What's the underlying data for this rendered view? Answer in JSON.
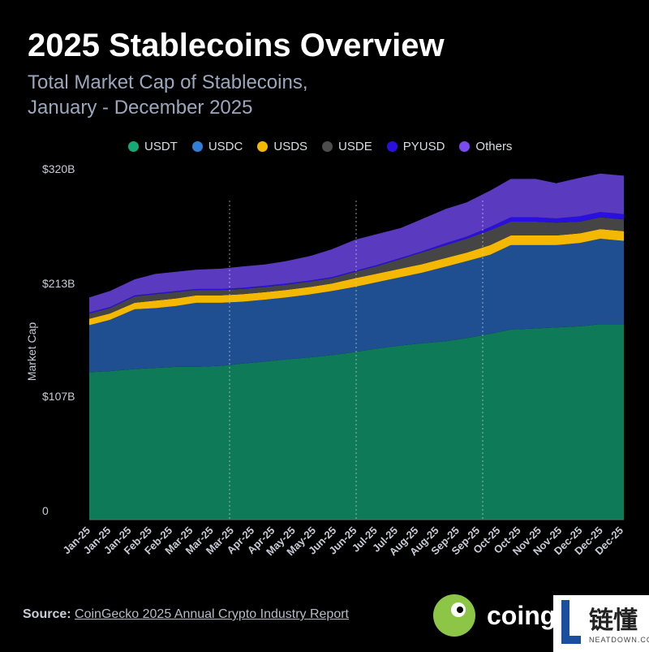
{
  "title": "2025 Stablecoins Overview",
  "subtitle_line1": "Total Market Cap of Stablecoins,",
  "subtitle_line2": "January - December 2025",
  "legend": [
    {
      "label": "USDT",
      "color": "#16a974"
    },
    {
      "label": "USDC",
      "color": "#2f7fd6"
    },
    {
      "label": "USDS",
      "color": "#f5b800"
    },
    {
      "label": "USDE",
      "color": "#4d4d4d"
    },
    {
      "label": "PYUSD",
      "color": "#2a10e0"
    },
    {
      "label": "Others",
      "color": "#7a4bf0"
    }
  ],
  "chart_data": {
    "type": "area",
    "stacked": true,
    "ylabel": "Market Cap",
    "y_ticks": [
      "0",
      "$107B",
      "$213B",
      "$320B"
    ],
    "ylim": [
      0,
      320
    ],
    "unit": "$B",
    "x_tick_labels": [
      "Jan-25",
      "Jan-25",
      "Jan-25",
      "Feb-25",
      "Feb-25",
      "Mar-25",
      "Mar-25",
      "Mar-25",
      "Apr-25",
      "Apr-25",
      "May-25",
      "May-25",
      "Jun-25",
      "Jun-25",
      "Jul-25",
      "Jul-25",
      "Aug-25",
      "Aug-25",
      "Sep-25",
      "Sep-25",
      "Oct-25",
      "Oct-25",
      "Nov-25",
      "Nov-25",
      "Dec-25",
      "Dec-25",
      "Dec-25"
    ],
    "x": [
      "2025-01-01",
      "2025-01-15",
      "2025-02-01",
      "2025-02-15",
      "2025-03-01",
      "2025-03-15",
      "2025-04-01",
      "2025-04-15",
      "2025-05-01",
      "2025-05-15",
      "2025-06-01",
      "2025-06-15",
      "2025-07-01",
      "2025-07-15",
      "2025-08-01",
      "2025-08-15",
      "2025-09-01",
      "2025-09-15",
      "2025-10-01",
      "2025-10-15",
      "2025-11-01",
      "2025-11-15",
      "2025-12-01",
      "2025-12-15",
      "2025-12-31"
    ],
    "series": [
      {
        "name": "USDT",
        "color": "#0f7a57",
        "values": [
          138,
          139,
          141,
          142,
          143,
          143,
          144,
          146,
          148,
          150,
          152,
          154,
          157,
          160,
          163,
          165,
          167,
          170,
          174,
          178,
          179,
          180,
          181,
          183,
          183
        ]
      },
      {
        "name": "USDC",
        "color": "#1f4f91",
        "values": [
          44,
          48,
          56,
          56,
          57,
          60,
          59,
          58,
          58,
          58,
          59,
          60,
          61,
          62,
          64,
          66,
          70,
          72,
          74,
          79,
          78,
          77,
          78,
          80,
          78
        ]
      },
      {
        "name": "USDS",
        "color": "#f5b800",
        "values": [
          6,
          6,
          6,
          7,
          7,
          7,
          7,
          7,
          7,
          7,
          7,
          7,
          8,
          8,
          8,
          8,
          8,
          8,
          9,
          9,
          9,
          9,
          9,
          9,
          9
        ]
      },
      {
        "name": "USDE",
        "color": "#454545",
        "values": [
          5,
          5,
          6,
          6,
          6,
          5,
          5,
          5,
          5,
          5,
          5,
          5,
          6,
          7,
          9,
          11,
          12,
          13,
          14,
          13,
          13,
          12,
          11,
          11,
          11
        ]
      },
      {
        "name": "PYUSD",
        "color": "#2a10e0",
        "values": [
          1,
          1,
          1,
          1,
          1,
          1,
          1,
          1,
          1,
          1,
          1,
          1,
          1,
          1,
          1,
          1,
          2,
          2,
          3,
          4,
          4,
          4,
          5,
          5,
          5
        ]
      },
      {
        "name": "Others",
        "color": "#5a3bbf",
        "values": [
          14,
          15,
          15,
          18,
          18,
          18,
          19,
          20,
          20,
          21,
          23,
          26,
          29,
          29,
          28,
          30,
          32,
          32,
          34,
          36,
          36,
          33,
          36,
          36,
          36
        ]
      }
    ]
  },
  "footer": {
    "source_label": "Source:",
    "source_link": "CoinGecko 2025 Annual Crypto Industry Report"
  },
  "brand": {
    "name": "coing"
  },
  "watermark": {
    "text": "链懂",
    "sub": "NEATDOWN.COM"
  }
}
